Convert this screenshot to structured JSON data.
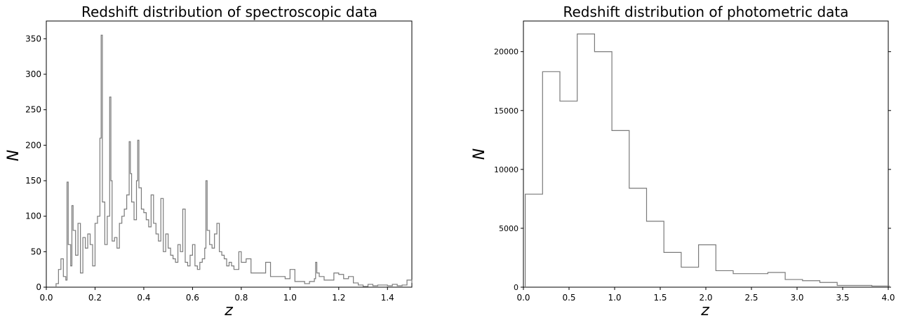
{
  "chart_data": [
    {
      "type": "bar",
      "title": "Redshift distribution of spectroscopic data",
      "xlabel": "z",
      "ylabel": "N",
      "xlim": [
        0.0,
        1.5
      ],
      "ylim": [
        0,
        375
      ],
      "xticks": [
        0.0,
        0.2,
        0.4,
        0.6,
        0.8,
        1.0,
        1.2,
        1.4
      ],
      "yticks": [
        0,
        50,
        100,
        150,
        200,
        250,
        300,
        350
      ],
      "xtick_labels": [
        "0.0",
        "0.2",
        "0.4",
        "0.6",
        "0.8",
        "1.0",
        "1.2",
        "1.4"
      ],
      "ytick_labels": [
        "0",
        "50",
        "100",
        "150",
        "200",
        "250",
        "300",
        "350"
      ],
      "grid": false,
      "series": [
        {
          "x": [
            0.04,
            0.05,
            0.06,
            0.07,
            0.08,
            0.085,
            0.09,
            0.1,
            0.105,
            0.11,
            0.12,
            0.13,
            0.14,
            0.15,
            0.16,
            0.17,
            0.18,
            0.19,
            0.2,
            0.21,
            0.22,
            0.225,
            0.23,
            0.24,
            0.25,
            0.26,
            0.265,
            0.27,
            0.28,
            0.29,
            0.3,
            0.31,
            0.32,
            0.33,
            0.34,
            0.345,
            0.35,
            0.36,
            0.37,
            0.375,
            0.38,
            0.39,
            0.4,
            0.41,
            0.42,
            0.43,
            0.44,
            0.45,
            0.46,
            0.47,
            0.48,
            0.49,
            0.5,
            0.51,
            0.52,
            0.53,
            0.54,
            0.55,
            0.56,
            0.57,
            0.58,
            0.59,
            0.6,
            0.61,
            0.62,
            0.63,
            0.64,
            0.65,
            0.655,
            0.66,
            0.67,
            0.68,
            0.69,
            0.7,
            0.71,
            0.72,
            0.73,
            0.74,
            0.75,
            0.76,
            0.77,
            0.78,
            0.79,
            0.8,
            0.82,
            0.84,
            0.86,
            0.88,
            0.9,
            0.92,
            0.94,
            0.96,
            0.98,
            1.0,
            1.02,
            1.04,
            1.06,
            1.08,
            1.1,
            1.105,
            1.11,
            1.12,
            1.14,
            1.16,
            1.18,
            1.2,
            1.22,
            1.24,
            1.26,
            1.28,
            1.3,
            1.32,
            1.34,
            1.36,
            1.38,
            1.4,
            1.42,
            1.44,
            1.46,
            1.48,
            1.5
          ],
          "values": [
            5,
            25,
            40,
            15,
            10,
            148,
            60,
            30,
            115,
            80,
            45,
            90,
            20,
            70,
            55,
            75,
            60,
            30,
            90,
            100,
            210,
            355,
            120,
            60,
            100,
            268,
            150,
            65,
            70,
            55,
            90,
            100,
            110,
            130,
            205,
            160,
            120,
            95,
            150,
            207,
            140,
            110,
            105,
            95,
            85,
            130,
            90,
            75,
            65,
            125,
            50,
            75,
            55,
            45,
            40,
            35,
            60,
            50,
            110,
            35,
            30,
            45,
            60,
            30,
            25,
            35,
            40,
            55,
            150,
            80,
            60,
            55,
            75,
            90,
            50,
            45,
            40,
            30,
            35,
            30,
            25,
            25,
            50,
            35,
            40,
            20,
            20,
            20,
            35,
            15,
            15,
            15,
            12,
            25,
            8,
            8,
            5,
            8,
            12,
            35,
            20,
            15,
            10,
            10,
            20,
            18,
            12,
            15,
            6,
            3,
            1,
            4,
            2,
            3,
            3,
            2,
            4,
            2,
            3,
            10,
            6
          ]
        }
      ]
    },
    {
      "type": "bar",
      "title": "Redshift distribution of photometric data",
      "xlabel": "z",
      "ylabel": "N",
      "xlim": [
        0.0,
        4.0
      ],
      "ylim": [
        0,
        22600
      ],
      "xticks": [
        0.0,
        0.5,
        1.0,
        1.5,
        2.0,
        2.5,
        3.0,
        3.5,
        4.0
      ],
      "yticks": [
        0,
        5000,
        10000,
        15000,
        20000
      ],
      "xtick_labels": [
        "0.0",
        "0.5",
        "1.0",
        "1.5",
        "2.0",
        "2.5",
        "3.0",
        "3.5",
        "4.0"
      ],
      "ytick_labels": [
        "0",
        "5000",
        "10000",
        "15000",
        "20000"
      ],
      "grid": false,
      "bin_edges": [
        0.02,
        0.21,
        0.4,
        0.59,
        0.78,
        0.97,
        1.16,
        1.35,
        1.54,
        1.73,
        1.92,
        2.11,
        2.3,
        2.49,
        2.68,
        2.87,
        3.06,
        3.25,
        3.44,
        3.63,
        3.82,
        4.01
      ],
      "series": [
        {
          "values": [
            7900,
            18300,
            15800,
            21500,
            20000,
            13300,
            8400,
            5600,
            2950,
            1700,
            3600,
            1400,
            1150,
            1150,
            1250,
            650,
            550,
            400,
            150,
            150,
            100
          ]
        }
      ]
    }
  ]
}
